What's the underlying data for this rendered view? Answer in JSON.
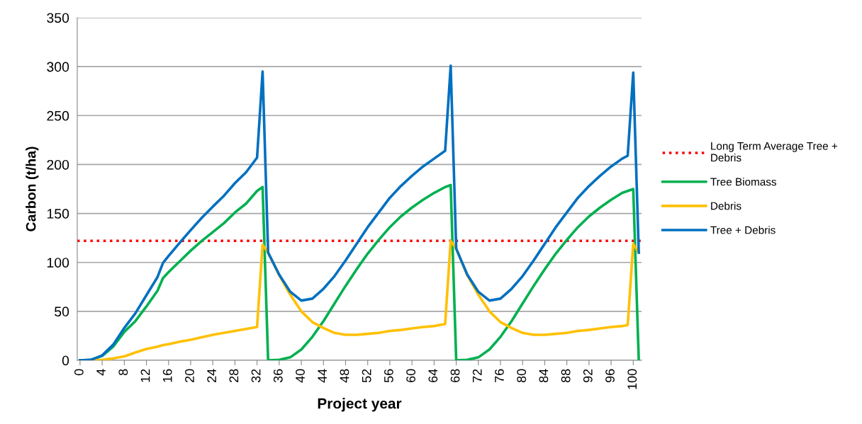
{
  "chart_data": {
    "type": "line",
    "xlabel": "Project year",
    "ylabel": "Carbon (t/ha)",
    "x": [
      0,
      2,
      4,
      6,
      8,
      10,
      12,
      14,
      15,
      16,
      18,
      20,
      22,
      24,
      26,
      28,
      30,
      32,
      33,
      34,
      36,
      38,
      40,
      42,
      44,
      46,
      48,
      50,
      52,
      54,
      56,
      58,
      60,
      62,
      64,
      66,
      67,
      68,
      70,
      72,
      74,
      76,
      78,
      80,
      82,
      84,
      86,
      88,
      90,
      92,
      94,
      96,
      98,
      99,
      100,
      101
    ],
    "series": [
      {
        "name": "Tree Biomass",
        "color": "#00b050",
        "values": [
          0,
          0.5,
          4.5,
          14,
          29,
          40,
          55,
          71,
          84,
          90,
          101,
          112,
          122,
          131,
          140,
          151,
          160,
          173,
          177,
          0,
          0.5,
          3,
          11,
          24,
          40,
          58,
          76,
          93,
          109,
          123,
          136,
          147,
          156,
          164,
          171,
          177,
          179,
          0,
          0.5,
          3,
          11,
          24,
          40,
          58,
          76,
          93,
          109,
          123,
          136,
          147,
          156,
          164,
          171,
          173,
          175,
          0
        ]
      },
      {
        "name": "Debris",
        "color": "#ffc000",
        "values": [
          0,
          0,
          0.5,
          2,
          4,
          8,
          11.5,
          14,
          15.5,
          16.5,
          19,
          21,
          23.5,
          26,
          28,
          30,
          32,
          34,
          118,
          110,
          87,
          67,
          50,
          39,
          33,
          28,
          26,
          26,
          27,
          28,
          30,
          31,
          32.5,
          34,
          35,
          37,
          122,
          114,
          87,
          67,
          50,
          39,
          33,
          28,
          26,
          26,
          27,
          28,
          30,
          31,
          32.5,
          34,
          35,
          36,
          119,
          110
        ]
      },
      {
        "name": "Tree + Debris",
        "color": "#0070c0",
        "values": [
          0,
          0.5,
          5,
          16,
          33,
          48,
          66.5,
          85,
          99.5,
          106.5,
          120,
          133,
          145.5,
          157,
          168,
          181,
          192,
          207,
          295,
          110,
          87.5,
          70,
          61,
          63,
          73,
          86,
          102,
          119,
          136,
          151,
          166,
          178,
          188.5,
          198,
          206,
          214,
          301,
          114,
          87.5,
          70,
          61,
          63,
          73,
          86,
          102,
          119,
          136,
          151,
          166,
          178,
          188.5,
          198,
          206,
          209,
          294,
          110
        ]
      }
    ],
    "ref_lines": [
      {
        "axis": "y",
        "value": 122,
        "label": "Long Term Average Tree + Debris",
        "color": "#ff0000",
        "line_style": "dotted"
      }
    ],
    "xlim": [
      -0.5,
      101.5
    ],
    "xticks": [
      0,
      4,
      8,
      12,
      16,
      20,
      24,
      28,
      32,
      36,
      40,
      44,
      48,
      52,
      56,
      60,
      64,
      68,
      72,
      76,
      80,
      84,
      88,
      92,
      96,
      100
    ],
    "ylim": [
      0,
      350
    ],
    "yticks": [
      0,
      50,
      100,
      150,
      200,
      250,
      300,
      350
    ],
    "grid": "y",
    "legend": "right",
    "marker": "none",
    "line_style": "solid"
  }
}
